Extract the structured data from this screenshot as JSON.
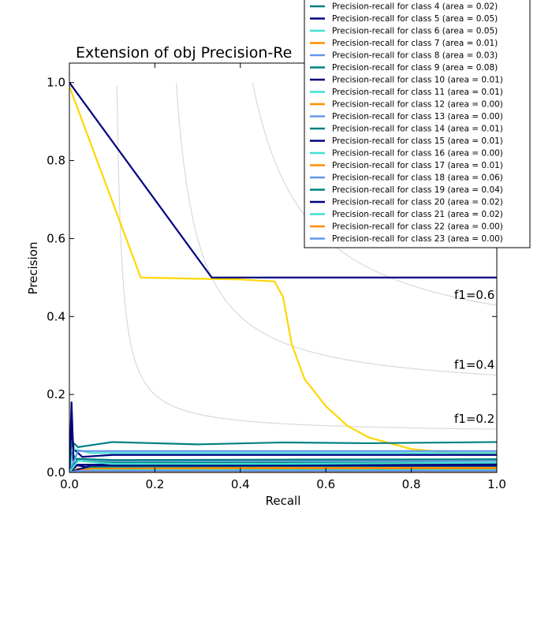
{
  "chart_data": {
    "type": "line",
    "title": "Extension of obj Precision-Re",
    "xlabel": "Recall",
    "ylabel": "Precision",
    "xlim": [
      0.0,
      1.0
    ],
    "ylim": [
      0.0,
      1.05
    ],
    "xticks": [
      "0.0",
      "0.2",
      "0.4",
      "0.6",
      "0.8",
      "1.0"
    ],
    "yticks": [
      "0.0",
      "0.2",
      "0.4",
      "0.6",
      "0.8",
      "1.0"
    ],
    "grid": false,
    "legend_position": "top-right",
    "iso_f1": [
      {
        "label": "f1=0.2",
        "f1": 0.2
      },
      {
        "label": "f1=0.4",
        "f1": 0.4
      },
      {
        "label": "f1=0.6",
        "f1": 0.6
      },
      {
        "label": "",
        "f1": 0.8
      }
    ],
    "series": [
      {
        "name": "",
        "color": "#ffd700",
        "x": [
          0.0,
          0.167,
          0.3,
          0.4,
          0.48,
          0.5,
          0.52,
          0.55,
          0.6,
          0.65,
          0.7,
          0.8,
          0.9,
          1.0
        ],
        "y": [
          0.99,
          0.5,
          0.497,
          0.495,
          0.49,
          0.45,
          0.33,
          0.24,
          0.17,
          0.12,
          0.09,
          0.06,
          0.05,
          0.05
        ]
      },
      {
        "name": "",
        "color": "#000080",
        "x": [
          0.0,
          0.333,
          0.5,
          0.6,
          0.7,
          0.8,
          0.9,
          1.0
        ],
        "y": [
          1.0,
          0.5,
          0.5,
          0.5,
          0.5,
          0.5,
          0.5,
          0.5
        ]
      },
      {
        "name": "Precision-recall for class 4 (area = 0.02)",
        "color": "#008080",
        "x": [
          0.0,
          0.005,
          0.02,
          0.1,
          0.3,
          0.6,
          1.0
        ],
        "y": [
          0.0,
          0.05,
          0.03,
          0.025,
          0.025,
          0.025,
          0.025
        ]
      },
      {
        "name": "Precision-recall for class 5 (area = 0.05)",
        "color": "#000080",
        "x": [
          0.0,
          0.005,
          0.01,
          0.03,
          0.1,
          0.3,
          0.6,
          1.0
        ],
        "y": [
          0.0,
          0.12,
          0.06,
          0.04,
          0.045,
          0.045,
          0.045,
          0.045
        ]
      },
      {
        "name": "Precision-recall for class 6 (area = 0.05)",
        "color": "#40e0d0",
        "x": [
          0.0,
          0.01,
          0.05,
          0.2,
          0.5,
          1.0
        ],
        "y": [
          0.0,
          0.06,
          0.05,
          0.05,
          0.05,
          0.05
        ]
      },
      {
        "name": "Precision-recall for class 7 (area = 0.01)",
        "color": "#ff8c00",
        "x": [
          0.0,
          0.02,
          0.1,
          0.5,
          1.0
        ],
        "y": [
          0.0,
          0.01,
          0.008,
          0.008,
          0.01
        ]
      },
      {
        "name": "Precision-recall for class 8 (area = 0.03)",
        "color": "#6495ed",
        "x": [
          0.0,
          0.02,
          0.1,
          0.5,
          1.0
        ],
        "y": [
          0.0,
          0.035,
          0.03,
          0.03,
          0.03
        ]
      },
      {
        "name": "Precision-recall for class 9 (area = 0.08)",
        "color": "#008080",
        "x": [
          0.0,
          0.005,
          0.02,
          0.1,
          0.3,
          0.5,
          0.7,
          1.0
        ],
        "y": [
          0.0,
          0.08,
          0.065,
          0.078,
          0.072,
          0.077,
          0.075,
          0.078
        ]
      },
      {
        "name": "Precision-recall for class 10 (area = 0.01)",
        "color": "#000080",
        "x": [
          0.0,
          0.005,
          0.01,
          0.05,
          0.3,
          1.0
        ],
        "y": [
          0.0,
          0.18,
          0.02,
          0.012,
          0.012,
          0.012
        ]
      },
      {
        "name": "Precision-recall for class 11 (area = 0.01)",
        "color": "#40e0d0",
        "x": [
          0.0,
          0.05,
          0.3,
          1.0
        ],
        "y": [
          0.0,
          0.015,
          0.012,
          0.015
        ]
      },
      {
        "name": "Precision-recall for class 12 (area = 0.00)",
        "color": "#ff8c00",
        "x": [
          0.0,
          0.05,
          0.5,
          1.0
        ],
        "y": [
          0.0,
          0.004,
          0.004,
          0.004
        ]
      },
      {
        "name": "Precision-recall for class 13 (area = 0.00)",
        "color": "#6495ed",
        "x": [
          0.0,
          0.05,
          0.5,
          1.0
        ],
        "y": [
          0.0,
          0.005,
          0.005,
          0.005
        ]
      },
      {
        "name": "Precision-recall for class 14 (area = 0.01)",
        "color": "#008080",
        "x": [
          0.0,
          0.05,
          0.5,
          1.0
        ],
        "y": [
          0.0,
          0.015,
          0.015,
          0.015
        ]
      },
      {
        "name": "Precision-recall for class 15 (area = 0.01)",
        "color": "#000080",
        "x": [
          0.0,
          0.05,
          0.5,
          1.0
        ],
        "y": [
          0.0,
          0.018,
          0.018,
          0.018
        ]
      },
      {
        "name": "Precision-recall for class 16 (area = 0.00)",
        "color": "#40e0d0",
        "x": [
          0.0,
          0.05,
          0.5,
          1.0
        ],
        "y": [
          0.0,
          0.006,
          0.006,
          0.006
        ]
      },
      {
        "name": "Precision-recall for class 17 (area = 0.01)",
        "color": "#ff8c00",
        "x": [
          0.0,
          0.05,
          0.5,
          1.0
        ],
        "y": [
          0.0,
          0.01,
          0.012,
          0.012
        ]
      },
      {
        "name": "Precision-recall for class 18 (area = 0.06)",
        "color": "#6495ed",
        "x": [
          0.0,
          0.02,
          0.1,
          0.5,
          1.0
        ],
        "y": [
          0.0,
          0.055,
          0.055,
          0.055,
          0.055
        ]
      },
      {
        "name": "Precision-recall for class 19 (area = 0.04)",
        "color": "#008080",
        "x": [
          0.0,
          0.02,
          0.1,
          0.5,
          1.0
        ],
        "y": [
          0.0,
          0.035,
          0.032,
          0.033,
          0.034
        ]
      },
      {
        "name": "Precision-recall for class 20 (area = 0.02)",
        "color": "#000080",
        "x": [
          0.0,
          0.02,
          0.1,
          0.5,
          1.0
        ],
        "y": [
          0.0,
          0.02,
          0.02,
          0.022,
          0.022
        ]
      },
      {
        "name": "Precision-recall for class 21 (area = 0.02)",
        "color": "#40e0d0",
        "x": [
          0.0,
          0.02,
          0.1,
          0.5,
          1.0
        ],
        "y": [
          0.0,
          0.03,
          0.022,
          0.022,
          0.025
        ]
      },
      {
        "name": "Precision-recall for class 22 (area = 0.00)",
        "color": "#ff8c00",
        "x": [
          0.0,
          0.02,
          0.5,
          1.0
        ],
        "y": [
          0.0,
          0.003,
          0.003,
          0.003
        ]
      },
      {
        "name": "Precision-recall for class 23 (area = 0.00)",
        "color": "#6495ed",
        "x": [
          0.0,
          0.02,
          0.5,
          1.0
        ],
        "y": [
          0.0,
          0.004,
          0.004,
          0.004
        ]
      }
    ]
  }
}
